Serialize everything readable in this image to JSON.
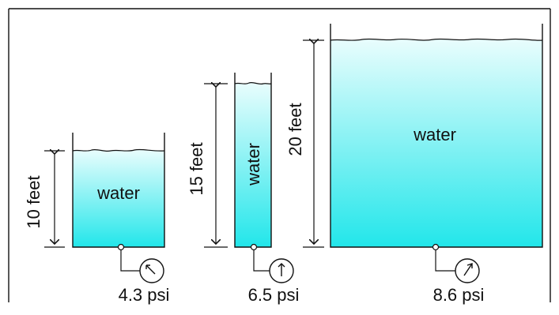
{
  "colors": {
    "water_top": "#e9fdfd",
    "water_bottom": "#22e6ea",
    "line": "#111111",
    "background": "#ffffff"
  },
  "tanks": [
    {
      "height_label": "10 feet",
      "fluid_label": "water",
      "pressure_label": "4.3 psi",
      "depth_ft": 10,
      "pressure_psi": 4.3
    },
    {
      "height_label": "15 feet",
      "fluid_label": "water",
      "pressure_label": "6.5 psi",
      "depth_ft": 15,
      "pressure_psi": 6.5
    },
    {
      "height_label": "20 feet",
      "fluid_label": "water",
      "pressure_label": "8.6 psi",
      "depth_ft": 20,
      "pressure_psi": 8.6
    }
  ]
}
